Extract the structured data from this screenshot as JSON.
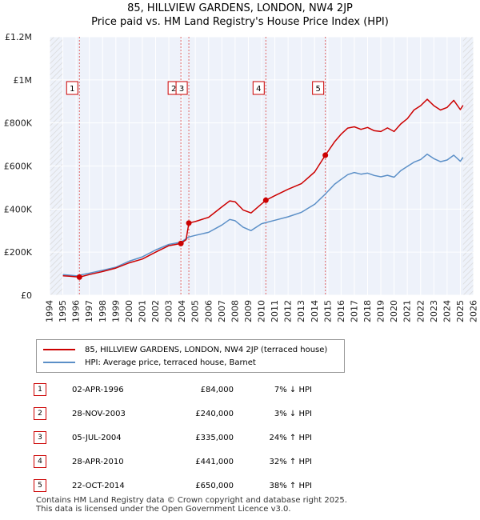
{
  "title_line1": "85, HILLVIEW GARDENS, LONDON, NW4 2JP",
  "title_line2": "Price paid vs. HM Land Registry's House Price Index (HPI)",
  "chart_data": {
    "type": "line",
    "xlim": [
      1994,
      2026
    ],
    "ylim": [
      0,
      1200000
    ],
    "x_ticks": [
      1994,
      1995,
      1996,
      1997,
      1998,
      1999,
      2000,
      2001,
      2002,
      2003,
      2004,
      2005,
      2006,
      2007,
      2008,
      2009,
      2010,
      2011,
      2012,
      2013,
      2014,
      2015,
      2016,
      2017,
      2018,
      2019,
      2020,
      2021,
      2022,
      2023,
      2024,
      2025,
      2026
    ],
    "y_ticks": [
      {
        "value": 0,
        "label": "£0"
      },
      {
        "value": 200000,
        "label": "£200K"
      },
      {
        "value": 400000,
        "label": "£400K"
      },
      {
        "value": 600000,
        "label": "£600K"
      },
      {
        "value": 800000,
        "label": "£800K"
      },
      {
        "value": 1000000,
        "label": "£1M"
      },
      {
        "value": 1200000,
        "label": "£1.2M"
      }
    ],
    "hatched_regions": [
      [
        1994,
        1995
      ],
      [
        2025.2,
        2026
      ]
    ],
    "series": [
      {
        "name": "85, HILLVIEW GARDENS, LONDON, NW4 2JP (terraced house)",
        "color": "#cc0000",
        "points": [
          [
            1995.0,
            90000
          ],
          [
            1995.5,
            88000
          ],
          [
            1996.25,
            84000
          ],
          [
            1997.0,
            96000
          ],
          [
            1998.0,
            110000
          ],
          [
            1999.0,
            126000
          ],
          [
            2000.0,
            150000
          ],
          [
            2001.0,
            168000
          ],
          [
            2002.0,
            200000
          ],
          [
            2003.0,
            230000
          ],
          [
            2003.9,
            240000
          ],
          [
            2004.3,
            258000
          ],
          [
            2004.51,
            335000
          ],
          [
            2005.0,
            342000
          ],
          [
            2006.0,
            362000
          ],
          [
            2007.0,
            410000
          ],
          [
            2007.6,
            438000
          ],
          [
            2008.0,
            434000
          ],
          [
            2008.6,
            396000
          ],
          [
            2009.2,
            382000
          ],
          [
            2010.32,
            441000
          ],
          [
            2011.0,
            462000
          ],
          [
            2012.0,
            492000
          ],
          [
            2013.0,
            518000
          ],
          [
            2014.0,
            572000
          ],
          [
            2014.81,
            650000
          ],
          [
            2015.5,
            712000
          ],
          [
            2016.0,
            748000
          ],
          [
            2016.5,
            776000
          ],
          [
            2017.0,
            782000
          ],
          [
            2017.5,
            770000
          ],
          [
            2018.0,
            779000
          ],
          [
            2018.5,
            764000
          ],
          [
            2019.0,
            760000
          ],
          [
            2019.5,
            777000
          ],
          [
            2020.0,
            760000
          ],
          [
            2020.5,
            795000
          ],
          [
            2021.0,
            820000
          ],
          [
            2021.5,
            860000
          ],
          [
            2022.0,
            880000
          ],
          [
            2022.5,
            910000
          ],
          [
            2023.0,
            880000
          ],
          [
            2023.5,
            860000
          ],
          [
            2024.0,
            872000
          ],
          [
            2024.5,
            905000
          ],
          [
            2025.0,
            862000
          ],
          [
            2025.2,
            882000
          ]
        ]
      },
      {
        "name": "HPI: Average price, terraced house, Barnet",
        "color": "#5b8fc7",
        "points": [
          [
            1995.0,
            96000
          ],
          [
            1996.0,
            90000
          ],
          [
            1997.0,
            102000
          ],
          [
            1998.0,
            116000
          ],
          [
            1999.0,
            130000
          ],
          [
            2000.0,
            158000
          ],
          [
            2001.0,
            178000
          ],
          [
            2002.0,
            210000
          ],
          [
            2003.0,
            236000
          ],
          [
            2003.9,
            246000
          ],
          [
            2004.5,
            270000
          ],
          [
            2005.0,
            278000
          ],
          [
            2006.0,
            292000
          ],
          [
            2007.0,
            326000
          ],
          [
            2007.6,
            352000
          ],
          [
            2008.0,
            346000
          ],
          [
            2008.6,
            316000
          ],
          [
            2009.2,
            300000
          ],
          [
            2010.0,
            332000
          ],
          [
            2011.0,
            348000
          ],
          [
            2012.0,
            364000
          ],
          [
            2013.0,
            385000
          ],
          [
            2014.0,
            422000
          ],
          [
            2014.81,
            470000
          ],
          [
            2015.5,
            515000
          ],
          [
            2016.0,
            538000
          ],
          [
            2016.5,
            560000
          ],
          [
            2017.0,
            570000
          ],
          [
            2017.5,
            562000
          ],
          [
            2018.0,
            567000
          ],
          [
            2018.5,
            556000
          ],
          [
            2019.0,
            550000
          ],
          [
            2019.5,
            557000
          ],
          [
            2020.0,
            548000
          ],
          [
            2020.5,
            578000
          ],
          [
            2021.0,
            598000
          ],
          [
            2021.5,
            618000
          ],
          [
            2022.0,
            630000
          ],
          [
            2022.5,
            655000
          ],
          [
            2023.0,
            634000
          ],
          [
            2023.5,
            620000
          ],
          [
            2024.0,
            628000
          ],
          [
            2024.5,
            650000
          ],
          [
            2025.0,
            622000
          ],
          [
            2025.2,
            640000
          ]
        ]
      }
    ],
    "sales": [
      {
        "label": "1",
        "x": 1996.25,
        "y": 84000
      },
      {
        "label": "2",
        "x": 2003.91,
        "y": 240000
      },
      {
        "label": "3",
        "x": 2004.51,
        "y": 335000
      },
      {
        "label": "4",
        "x": 2010.32,
        "y": 441000
      },
      {
        "label": "5",
        "x": 2014.81,
        "y": 650000
      }
    ]
  },
  "legend": {
    "property": "85, HILLVIEW GARDENS, LONDON, NW4 2JP (terraced house)",
    "hpi": "HPI: Average price, terraced house, Barnet",
    "property_color": "#cc0000",
    "hpi_color": "#5b8fc7"
  },
  "table": [
    {
      "num": "1",
      "date": "02-APR-1996",
      "price": "£84,000",
      "hpi": "7% ↓ HPI"
    },
    {
      "num": "2",
      "date": "28-NOV-2003",
      "price": "£240,000",
      "hpi": "3% ↓ HPI"
    },
    {
      "num": "3",
      "date": "05-JUL-2004",
      "price": "£335,000",
      "hpi": "24% ↑ HPI"
    },
    {
      "num": "4",
      "date": "28-APR-2010",
      "price": "£441,000",
      "hpi": "32% ↑ HPI"
    },
    {
      "num": "5",
      "date": "22-OCT-2014",
      "price": "£650,000",
      "hpi": "38% ↑ HPI"
    }
  ],
  "footer_line1": "Contains HM Land Registry data © Crown copyright and database right 2025.",
  "footer_line2": "This data is licensed under the Open Government Licence v3.0."
}
